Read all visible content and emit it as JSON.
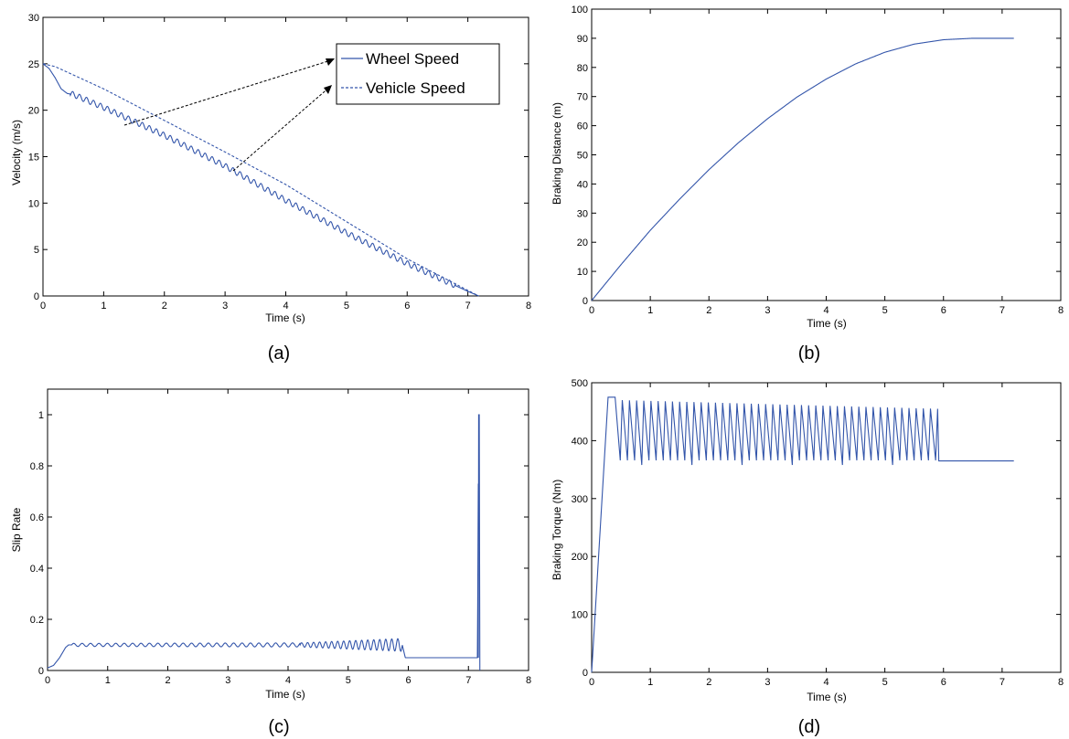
{
  "chart_data": [
    {
      "id": "a",
      "type": "line",
      "caption": "(a)",
      "xlabel": "Time (s)",
      "ylabel": "Velocity (m/s)",
      "xlim": [
        0,
        8
      ],
      "ylim": [
        0,
        30
      ],
      "xticks": [
        0,
        1,
        2,
        3,
        4,
        5,
        6,
        7,
        8
      ],
      "yticks": [
        0,
        5,
        10,
        15,
        20,
        25,
        30
      ],
      "legend": {
        "placement": "top-right",
        "entries": [
          "Wheel Speed",
          "Vehicle Speed"
        ]
      },
      "series": [
        {
          "name": "Wheel Speed",
          "style": "solid",
          "oscillation": 0.3,
          "x": [
            0,
            0.1,
            0.2,
            0.3,
            0.4,
            0.5,
            1.0,
            2.0,
            3.0,
            4.0,
            5.0,
            6.0,
            6.5,
            7.0,
            7.18
          ],
          "y": [
            25.0,
            24.5,
            23.5,
            22.3,
            21.8,
            21.7,
            20.3,
            17.3,
            14.0,
            10.3,
            6.8,
            3.5,
            2.0,
            0.5,
            0.0
          ]
        },
        {
          "name": "Vehicle Speed",
          "style": "dashed",
          "x": [
            0,
            0.2,
            1.0,
            2.0,
            3.0,
            4.0,
            5.0,
            6.0,
            7.0,
            7.18
          ],
          "y": [
            25.0,
            24.7,
            22.3,
            18.9,
            15.5,
            12.0,
            8.0,
            4.0,
            0.6,
            0.0
          ]
        }
      ]
    },
    {
      "id": "b",
      "type": "line",
      "caption": "(b)",
      "xlabel": "Time (s)",
      "ylabel": "Braking Distance (m)",
      "xlim": [
        0,
        8
      ],
      "ylim": [
        0,
        100
      ],
      "xticks": [
        0,
        1,
        2,
        3,
        4,
        5,
        6,
        7,
        8
      ],
      "yticks": [
        0,
        10,
        20,
        30,
        40,
        50,
        60,
        70,
        80,
        90,
        100
      ],
      "series": [
        {
          "style": "solid",
          "x": [
            0,
            0.5,
            1.0,
            1.5,
            2.0,
            2.5,
            3.0,
            3.5,
            4.0,
            4.5,
            5.0,
            5.5,
            6.0,
            6.5,
            7.0,
            7.2
          ],
          "y": [
            0,
            12.3,
            24.1,
            34.8,
            44.9,
            54.1,
            62.4,
            69.8,
            76.0,
            81.2,
            85.2,
            88.0,
            89.5,
            90.0,
            90.0,
            90.0
          ]
        }
      ]
    },
    {
      "id": "c",
      "type": "line",
      "caption": "(c)",
      "xlabel": "Time (s)",
      "ylabel": "Slip Rate",
      "xlim": [
        0,
        8
      ],
      "ylim": [
        0,
        1.1
      ],
      "xticks": [
        0,
        1,
        2,
        3,
        4,
        5,
        6,
        7,
        8
      ],
      "yticks": [
        0,
        0.2,
        0.4,
        0.6,
        0.8,
        1.0
      ],
      "ytick_labels": [
        "0",
        "0.2",
        "0.4",
        "0.6",
        "0.8",
        "1"
      ],
      "series": [
        {
          "style": "solid",
          "x": [
            0,
            0.1,
            0.2,
            0.3,
            0.35,
            0.5,
            1.0,
            2.0,
            3.0,
            4.0,
            5.0,
            5.9,
            5.95,
            6.0,
            7.15,
            7.17,
            7.18,
            7.19
          ],
          "y": [
            0.01,
            0.02,
            0.05,
            0.09,
            0.1,
            0.1,
            0.1,
            0.1,
            0.1,
            0.1,
            0.1,
            0.1,
            0.05,
            0.05,
            0.05,
            1.0,
            1.0,
            0.0
          ],
          "oscillations": [
            {
              "from": 0.4,
              "to": 4.2,
              "amp_start": 0.006,
              "amp_end": 0.008,
              "period": 0.14
            },
            {
              "from": 4.2,
              "to": 5.9,
              "amp_start": 0.008,
              "amp_end": 0.025,
              "period": 0.1
            }
          ]
        }
      ]
    },
    {
      "id": "d",
      "type": "line",
      "caption": "(d)",
      "xlabel": "Time (s)",
      "ylabel": "Braking Torque (Nm)",
      "xlim": [
        0,
        8
      ],
      "ylim": [
        0,
        500
      ],
      "xticks": [
        0,
        1,
        2,
        3,
        4,
        5,
        6,
        7,
        8
      ],
      "yticks": [
        0,
        100,
        200,
        300,
        400,
        500
      ],
      "series": [
        {
          "style": "solid",
          "x": [
            0,
            0.28,
            0.4,
            5.9,
            5.92,
            7.2
          ],
          "y": [
            0,
            475,
            475,
            455,
            365,
            365
          ],
          "sawtooth": {
            "from": 0.4,
            "to": 5.9,
            "cycles": 45,
            "top_start": 470,
            "top_end": 455,
            "bottom": 362
          }
        }
      ]
    }
  ]
}
